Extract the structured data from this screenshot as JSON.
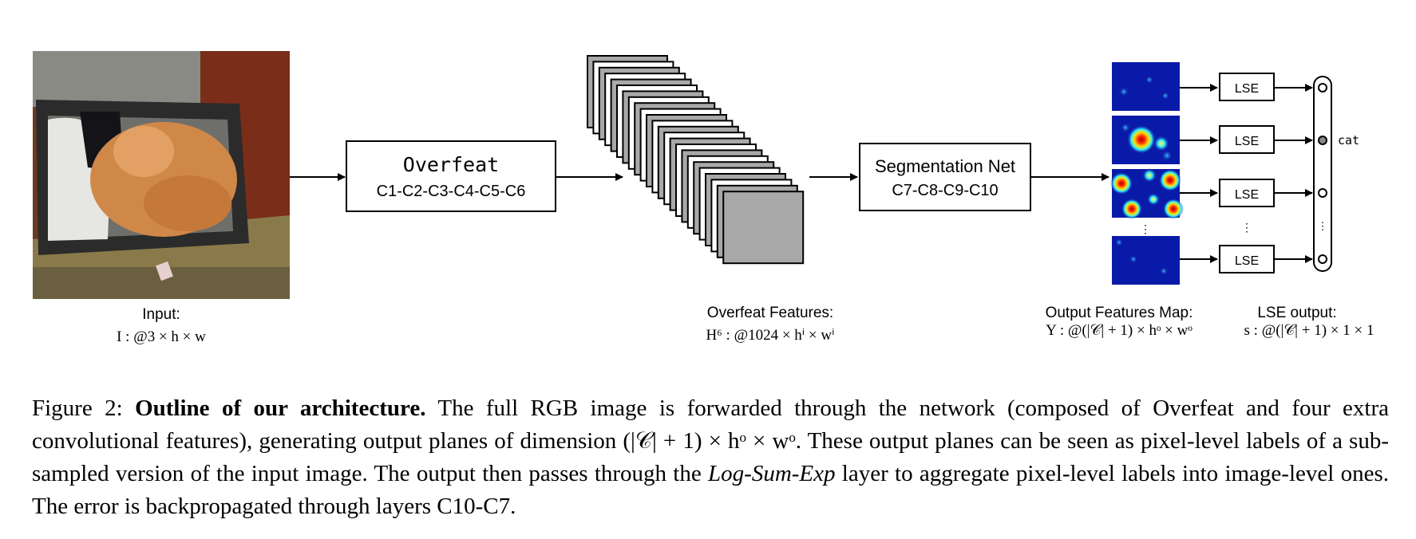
{
  "input": {
    "label": "Input:",
    "dims": "I : @3 × h × w"
  },
  "overfeat": {
    "title": "Overfeat",
    "layers": "C1-C2-C3-C4-C5-C6"
  },
  "features": {
    "label": "Overfeat Features:",
    "dims": "H⁶ : @1024 × hⁱ × wⁱ"
  },
  "segnet": {
    "title": "Segmentation Net",
    "layers": "C7-C8-C9-C10"
  },
  "output_maps": {
    "label": "Output Features Map:",
    "dims": "Y : @(|𝒞| + 1) × hᵒ × wᵒ"
  },
  "lse": {
    "box_label": "LSE",
    "output_label": "LSE output:",
    "output_dims": "s : @(|𝒞| + 1) × 1 × 1",
    "class_label": "cat",
    "ellipsis": "⋮"
  },
  "caption": {
    "fig_label": "Figure 2:",
    "bold_title": "Outline of our architecture.",
    "text_1": "The full RGB image is forwarded through the network (composed of Overfeat and four extra convolutional features), generating output planes of dimension (|𝒞| + 1) × hᵒ × wᵒ. These output planes can be seen as pixel-level labels of a sub-sampled version of the input image. The output then passes through the",
    "italic_term": "Log-Sum-Exp",
    "text_2": "layer to aggregate pixel-level labels into image-level ones. The error is backpropagated through layers C10-C7."
  },
  "colors": {
    "heatmap_bg": "#0a1aa8",
    "feature_map_fill": "#a8a8a8",
    "box_stroke": "#000000"
  }
}
